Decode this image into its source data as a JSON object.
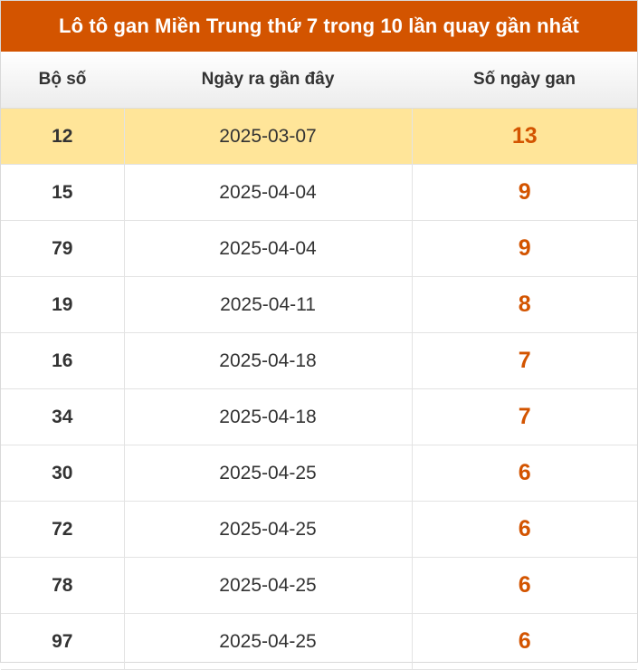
{
  "title": "Lô tô gan Miền Trung thứ 7 trong 10 lần quay gần nhất",
  "colors": {
    "header_bg": "#d35400",
    "highlight_row": "#ffe599",
    "gan_value": "#d35400"
  },
  "table": {
    "headers": [
      "Bộ số",
      "Ngày ra gần đây",
      "Số ngày gan"
    ],
    "rows": [
      {
        "number": "12",
        "date": "2025-03-07",
        "days": "13"
      },
      {
        "number": "15",
        "date": "2025-04-04",
        "days": "9"
      },
      {
        "number": "79",
        "date": "2025-04-04",
        "days": "9"
      },
      {
        "number": "19",
        "date": "2025-04-11",
        "days": "8"
      },
      {
        "number": "16",
        "date": "2025-04-18",
        "days": "7"
      },
      {
        "number": "34",
        "date": "2025-04-18",
        "days": "7"
      },
      {
        "number": "30",
        "date": "2025-04-25",
        "days": "6"
      },
      {
        "number": "72",
        "date": "2025-04-25",
        "days": "6"
      },
      {
        "number": "78",
        "date": "2025-04-25",
        "days": "6"
      },
      {
        "number": "97",
        "date": "2025-04-25",
        "days": "6"
      }
    ]
  }
}
